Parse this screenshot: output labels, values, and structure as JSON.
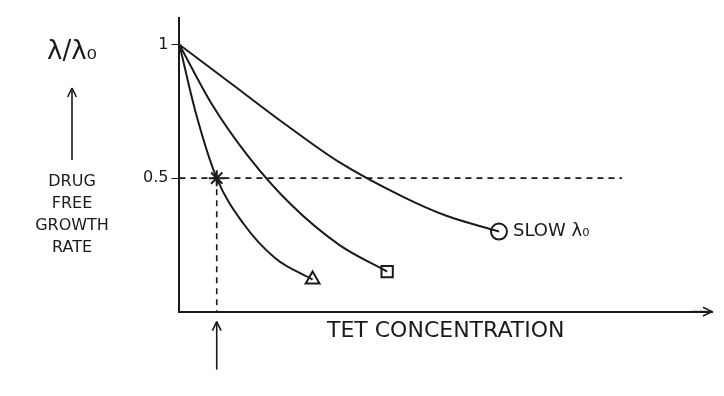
{
  "chart_data": {
    "type": "line",
    "x_label": "TET CONCENTRATION",
    "y_label": "λ/λ₀",
    "annotations": [
      "DRUG FREE GROWTH RATE"
    ],
    "xlim": [
      0,
      10
    ],
    "ylim": [
      0,
      1.1
    ],
    "yticks": [
      0.5,
      1
    ],
    "grid": false,
    "tick_labels": "y",
    "series": [
      {
        "color": "#1a1a1a",
        "marker": "triangle",
        "line_style": "solid",
        "x": [
          0,
          0.3,
          0.7,
          1.2,
          1.8,
          2.5
        ],
        "values": [
          1,
          0.75,
          0.5,
          0.33,
          0.2,
          0.12
        ]
      },
      {
        "color": "#1a1a1a",
        "marker": "square",
        "line_style": "solid",
        "x": [
          0,
          0.6,
          1.3,
          2.1,
          3,
          3.9
        ],
        "values": [
          1,
          0.78,
          0.58,
          0.4,
          0.25,
          0.15
        ]
      },
      {
        "name": "SLOW λ₀",
        "color": "#1a1a1a",
        "marker": "circle",
        "line_style": "solid",
        "x": [
          0,
          1,
          2,
          3,
          4.2,
          5,
          6
        ],
        "values": [
          1,
          0.85,
          0.7,
          0.56,
          0.43,
          0.36,
          0.3
        ]
      }
    ],
    "marked_point": {
      "x": 0.7,
      "y": 0.5,
      "marker": "star",
      "line_style": "dashed",
      "color": "#1a1a1a"
    }
  }
}
